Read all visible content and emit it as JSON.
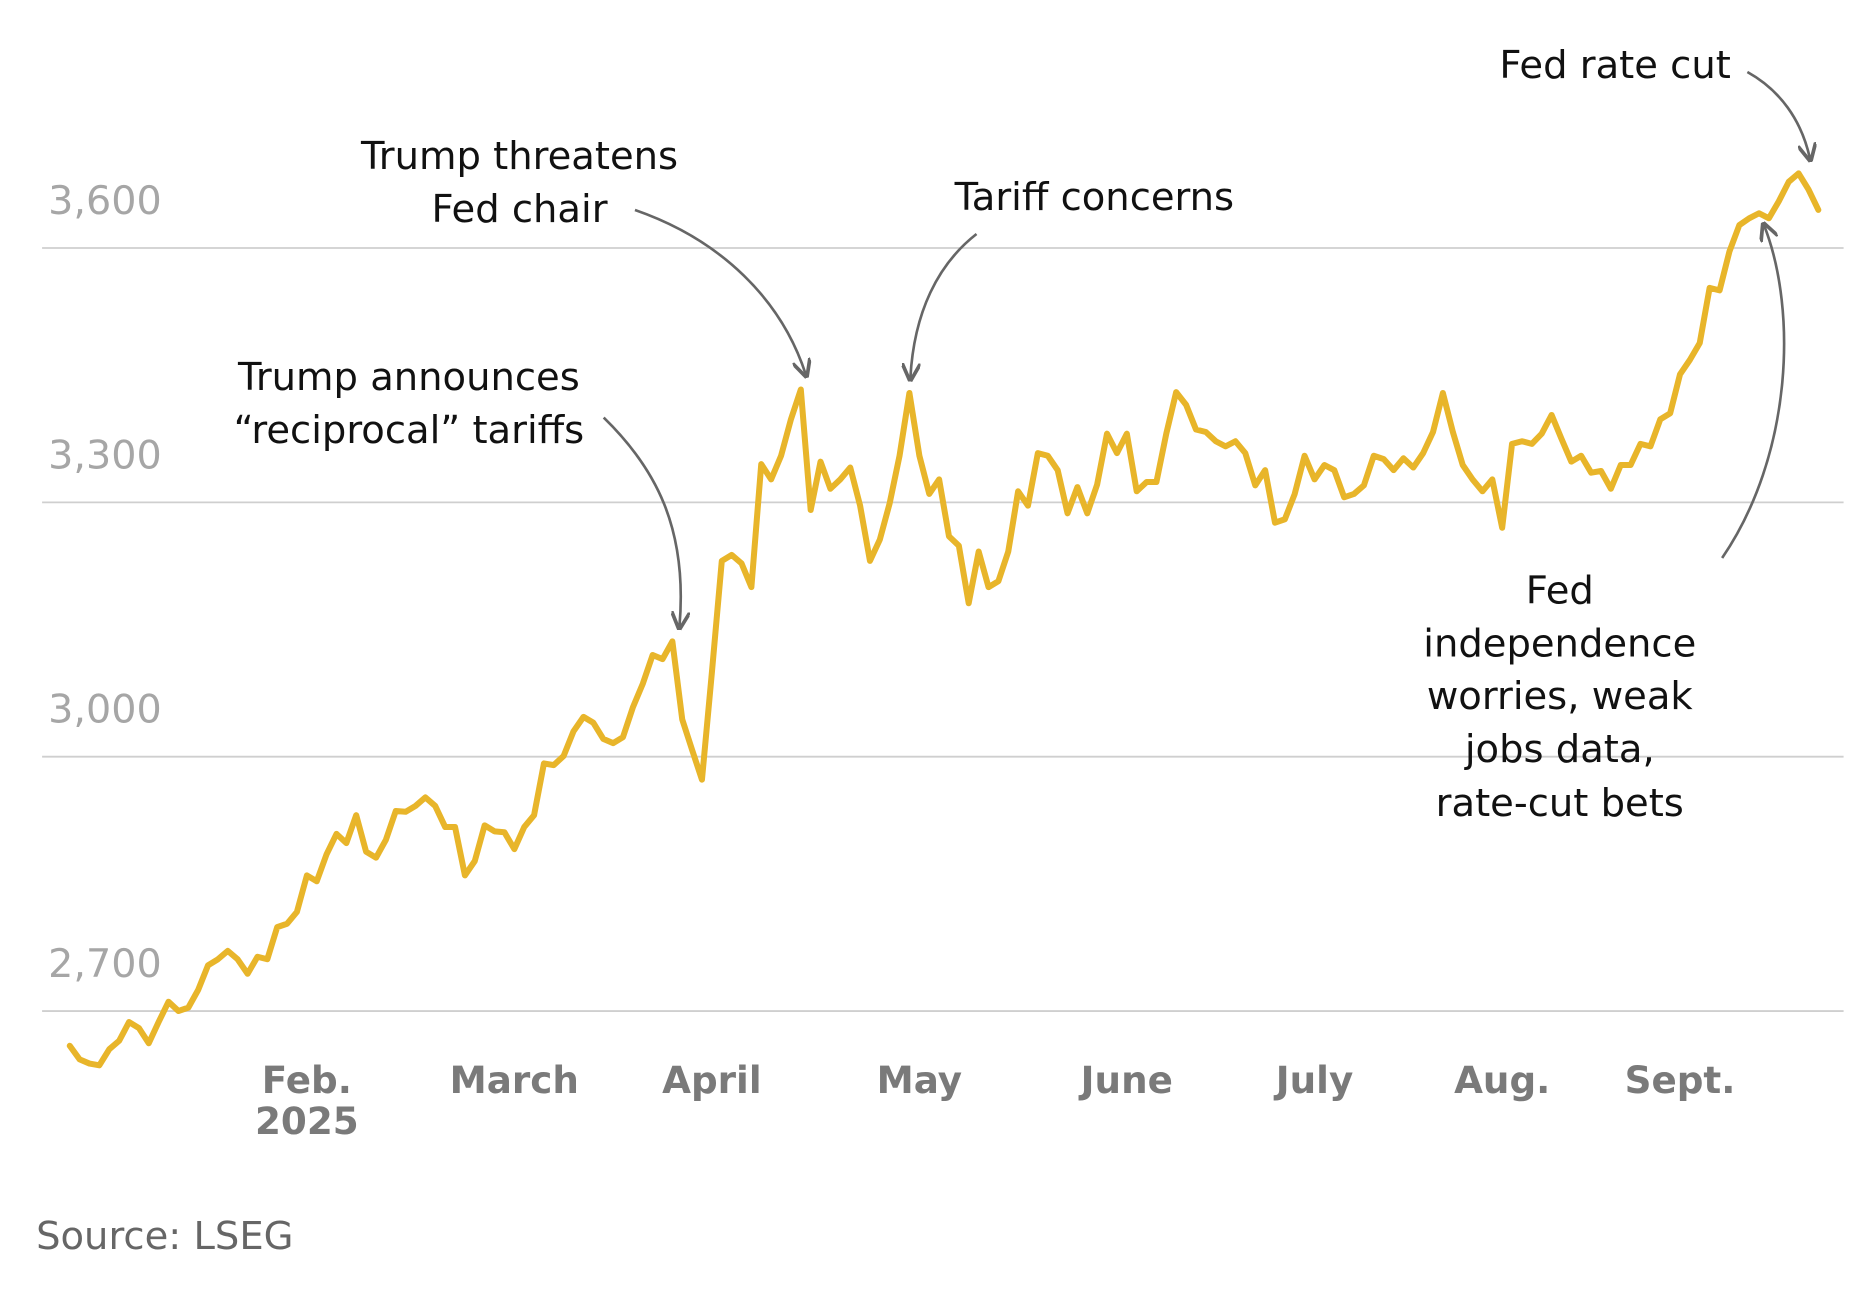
{
  "chart_data": {
    "type": "line",
    "color": "#e8b52a",
    "grid": true,
    "ylim": [
      2630,
      3700
    ],
    "yticks": [
      {
        "value": 2700,
        "label": "2,700"
      },
      {
        "value": 3000,
        "label": "3,000"
      },
      {
        "value": 3300,
        "label": "3,300"
      },
      {
        "value": 3600,
        "label": "3,600"
      }
    ],
    "categories": [
      null,
      null,
      null,
      null,
      null,
      null,
      null,
      null,
      null,
      null,
      null,
      null,
      null,
      null,
      null,
      null,
      null,
      null,
      null,
      null,
      null,
      null,
      null,
      null,
      "Feb.\n2025",
      null,
      null,
      null,
      null,
      null,
      null,
      null,
      null,
      null,
      null,
      null,
      null,
      null,
      null,
      null,
      null,
      null,
      null,
      null,
      null,
      "March",
      null,
      null,
      null,
      null,
      null,
      null,
      null,
      null,
      null,
      null,
      null,
      null,
      null,
      null,
      null,
      null,
      null,
      null,
      null,
      "April",
      null,
      null,
      null,
      null,
      null,
      null,
      null,
      null,
      null,
      null,
      null,
      null,
      null,
      null,
      null,
      null,
      null,
      null,
      null,
      null,
      "May",
      null,
      null,
      null,
      null,
      null,
      null,
      null,
      null,
      null,
      null,
      null,
      null,
      null,
      null,
      null,
      null,
      null,
      null,
      null,
      null,
      "June",
      null,
      null,
      null,
      null,
      null,
      null,
      null,
      null,
      null,
      null,
      null,
      null,
      null,
      null,
      null,
      null,
      null,
      null,
      "July",
      null,
      null,
      null,
      null,
      null,
      null,
      null,
      null,
      null,
      null,
      null,
      null,
      null,
      null,
      null,
      null,
      null,
      null,
      "Aug.",
      null,
      null,
      null,
      null,
      null,
      null,
      null,
      null,
      null,
      null,
      null,
      null,
      null,
      null,
      null,
      null,
      null,
      "Sept.",
      null,
      null,
      null,
      null,
      null,
      null,
      null,
      null,
      null,
      null,
      null,
      null,
      null,
      null
    ],
    "values": [
      2659,
      2643,
      2638,
      2636,
      2655,
      2665,
      2687,
      2680,
      2662,
      2687,
      2711,
      2700,
      2704,
      2725,
      2754,
      2761,
      2771,
      2761,
      2744,
      2764,
      2761,
      2799,
      2803,
      2817,
      2860,
      2853,
      2885,
      2909,
      2898,
      2931,
      2888,
      2881,
      2902,
      2936,
      2935,
      2942,
      2952,
      2942,
      2917,
      2917,
      2860,
      2877,
      2919,
      2912,
      2911,
      2891,
      2917,
      2931,
      2992,
      2990,
      3001,
      3030,
      3047,
      3040,
      3021,
      3016,
      3023,
      3058,
      3086,
      3120,
      3115,
      3136,
      3044,
      3008,
      2973,
      3100,
      3231,
      3238,
      3228,
      3200,
      3345,
      3327,
      3355,
      3398,
      3433,
      3291,
      3348,
      3316,
      3327,
      3341,
      3296,
      3231,
      3256,
      3299,
      3355,
      3429,
      3355,
      3310,
      3327,
      3260,
      3249,
      3181,
      3242,
      3200,
      3207,
      3242,
      3313,
      3296,
      3358,
      3355,
      3338,
      3287,
      3318,
      3287,
      3321,
      3381,
      3358,
      3381,
      3313,
      3324,
      3324,
      3381,
      3430,
      3415,
      3386,
      3383,
      3372,
      3366,
      3372,
      3358,
      3320,
      3338,
      3276,
      3280,
      3310,
      3355,
      3327,
      3344,
      3338,
      3306,
      3310,
      3320,
      3355,
      3351,
      3338,
      3352,
      3341,
      3358,
      3383,
      3429,
      3383,
      3344,
      3327,
      3313,
      3327,
      3270,
      3369,
      3372,
      3369,
      3381,
      3403,
      3375,
      3348,
      3355,
      3335,
      3337,
      3316,
      3344,
      3344,
      3369,
      3366,
      3398,
      3405,
      3451,
      3468,
      3488,
      3553,
      3550,
      3596,
      3627,
      3635,
      3641,
      3635,
      3655,
      3678,
      3688,
      3669,
      3645
    ],
    "annotations": [
      "Trump announces\n“reciprocal” tariffs",
      "Trump threatens\nFed chair",
      "Tariff concerns",
      "Fed rate cut",
      "Fed independence\nworries, weak jobs data,\nrate-cut bets"
    ],
    "source": "Source: LSEG"
  }
}
